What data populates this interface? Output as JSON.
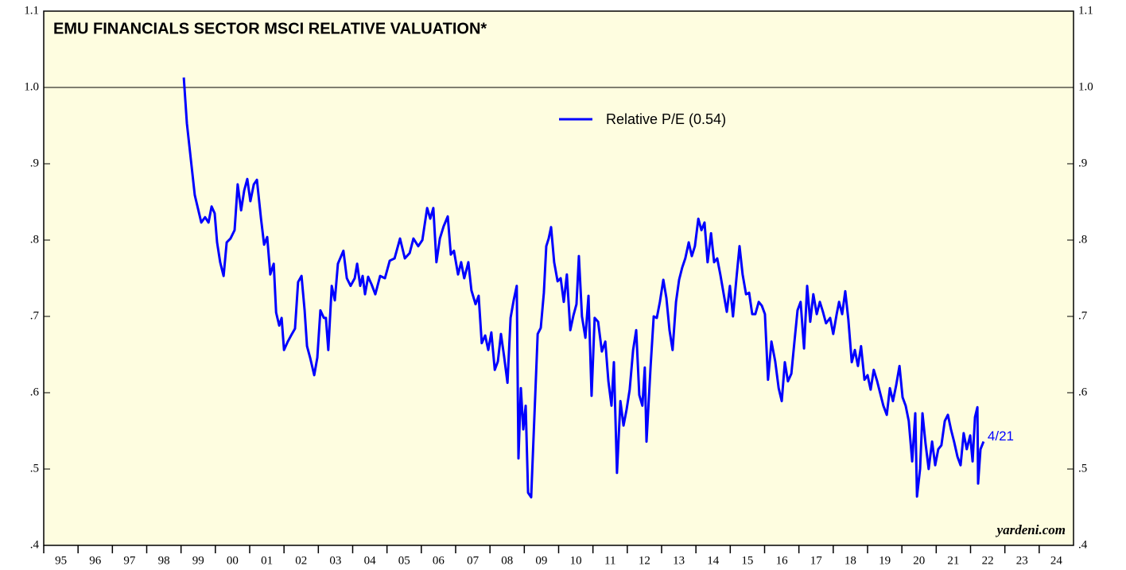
{
  "chart_data": {
    "type": "line",
    "title": "EMU FINANCIALS SECTOR MSCI RELATIVE VALUATION*",
    "annotation": "4/21",
    "source": "yardeni.com",
    "reference_line": 1.0,
    "legend": "top-center",
    "xlim": [
      1995,
      2025
    ],
    "xticks": [
      {
        "value": 1995,
        "label": "95"
      },
      {
        "value": 1996,
        "label": "96"
      },
      {
        "value": 1997,
        "label": "97"
      },
      {
        "value": 1998,
        "label": "98"
      },
      {
        "value": 1999,
        "label": "99"
      },
      {
        "value": 2000,
        "label": "00"
      },
      {
        "value": 2001,
        "label": "01"
      },
      {
        "value": 2002,
        "label": "02"
      },
      {
        "value": 2003,
        "label": "03"
      },
      {
        "value": 2004,
        "label": "04"
      },
      {
        "value": 2005,
        "label": "05"
      },
      {
        "value": 2006,
        "label": "06"
      },
      {
        "value": 2007,
        "label": "07"
      },
      {
        "value": 2008,
        "label": "08"
      },
      {
        "value": 2009,
        "label": "09"
      },
      {
        "value": 2010,
        "label": "10"
      },
      {
        "value": 2011,
        "label": "11"
      },
      {
        "value": 2012,
        "label": "12"
      },
      {
        "value": 2013,
        "label": "13"
      },
      {
        "value": 2014,
        "label": "14"
      },
      {
        "value": 2015,
        "label": "15"
      },
      {
        "value": 2016,
        "label": "16"
      },
      {
        "value": 2017,
        "label": "17"
      },
      {
        "value": 2018,
        "label": "18"
      },
      {
        "value": 2019,
        "label": "19"
      },
      {
        "value": 2020,
        "label": "20"
      },
      {
        "value": 2021,
        "label": "21"
      },
      {
        "value": 2022,
        "label": "22"
      },
      {
        "value": 2023,
        "label": "23"
      },
      {
        "value": 2024,
        "label": "24"
      }
    ],
    "ylim": [
      0.4,
      1.1
    ],
    "yticks": [
      {
        "value": 0.4,
        "label": ".4"
      },
      {
        "value": 0.5,
        "label": ".5"
      },
      {
        "value": 0.6,
        "label": ".6"
      },
      {
        "value": 0.7,
        "label": ".7"
      },
      {
        "value": 0.8,
        "label": ".8"
      },
      {
        "value": 0.9,
        "label": ".9"
      },
      {
        "value": 1.0,
        "label": "1.0"
      },
      {
        "value": 1.1,
        "label": "1.1"
      }
    ],
    "x": [
      1999.08,
      1999.17,
      1999.4,
      1999.59,
      1999.7,
      1999.8,
      1999.89,
      1999.98,
      2000.05,
      2000.14,
      2000.24,
      2000.33,
      2000.44,
      2000.56,
      2000.65,
      2000.75,
      2000.84,
      2000.93,
      2001.02,
      2001.12,
      2001.21,
      2001.33,
      2001.42,
      2001.51,
      2001.6,
      2001.7,
      2001.77,
      2001.86,
      2001.93,
      2002.0,
      2002.11,
      2002.23,
      2002.32,
      2002.41,
      2002.51,
      2002.6,
      2002.67,
      2002.76,
      2002.88,
      2002.97,
      2003.06,
      2003.16,
      2003.22,
      2003.29,
      2003.39,
      2003.48,
      2003.57,
      2003.73,
      2003.83,
      2003.94,
      2004.06,
      2004.13,
      2004.22,
      2004.29,
      2004.36,
      2004.45,
      2004.55,
      2004.66,
      2004.8,
      2004.94,
      2005.08,
      2005.22,
      2005.38,
      2005.52,
      2005.66,
      2005.77,
      2005.91,
      2006.03,
      2006.17,
      2006.26,
      2006.35,
      2006.44,
      2006.54,
      2006.65,
      2006.77,
      2006.86,
      2006.95,
      2007.07,
      2007.16,
      2007.25,
      2007.37,
      2007.46,
      2007.58,
      2007.67,
      2007.76,
      2007.86,
      2007.95,
      2008.04,
      2008.14,
      2008.23,
      2008.32,
      2008.41,
      2008.51,
      2008.6,
      2008.69,
      2008.78,
      2008.83,
      2008.9,
      2008.97,
      2009.04,
      2009.11,
      2009.2,
      2009.27,
      2009.39,
      2009.48,
      2009.57,
      2009.64,
      2009.71,
      2009.78,
      2009.87,
      2009.97,
      2010.06,
      2010.15,
      2010.24,
      2010.34,
      2010.43,
      2010.52,
      2010.59,
      2010.68,
      2010.78,
      2010.87,
      2010.96,
      2011.05,
      2011.15,
      2011.26,
      2011.36,
      2011.45,
      2011.54,
      2011.61,
      2011.7,
      2011.8,
      2011.89,
      2011.98,
      2012.07,
      2012.17,
      2012.26,
      2012.35,
      2012.44,
      2012.51,
      2012.56,
      2012.68,
      2012.77,
      2012.86,
      2012.95,
      2013.05,
      2013.14,
      2013.23,
      2013.32,
      2013.42,
      2013.51,
      2013.6,
      2013.69,
      2013.79,
      2013.88,
      2013.97,
      2014.07,
      2014.16,
      2014.25,
      2014.34,
      2014.44,
      2014.53,
      2014.62,
      2014.71,
      2014.81,
      2014.9,
      2014.99,
      2015.08,
      2015.18,
      2015.27,
      2015.36,
      2015.46,
      2015.55,
      2015.64,
      2015.73,
      2015.83,
      2015.92,
      2016.01,
      2016.1,
      2016.2,
      2016.31,
      2016.41,
      2016.5,
      2016.59,
      2016.68,
      2016.78,
      2016.87,
      2016.96,
      2017.05,
      2017.15,
      2017.24,
      2017.33,
      2017.42,
      2017.52,
      2017.61,
      2017.7,
      2017.79,
      2017.91,
      2018.0,
      2018.1,
      2018.17,
      2018.26,
      2018.35,
      2018.44,
      2018.54,
      2018.63,
      2018.72,
      2018.81,
      2018.91,
      2019.0,
      2019.09,
      2019.18,
      2019.28,
      2019.37,
      2019.46,
      2019.56,
      2019.65,
      2019.74,
      2019.83,
      2019.93,
      2020.02,
      2020.11,
      2020.2,
      2020.3,
      2020.39,
      2020.44,
      2020.53,
      2020.6,
      2020.69,
      2020.78,
      2020.88,
      2020.97,
      2021.06,
      2021.15,
      2021.25,
      2021.34,
      2021.43,
      2021.52,
      2021.62,
      2021.71,
      2021.8,
      2021.89,
      2021.99,
      2022.06,
      2022.13,
      2022.2,
      2022.22,
      2022.29,
      2022.38
    ],
    "series": [
      {
        "name": "Relative P/E (0.54)",
        "color": "#0000ff",
        "values": [
          1.013,
          0.953,
          0.859,
          0.823,
          0.83,
          0.823,
          0.844,
          0.835,
          0.797,
          0.771,
          0.753,
          0.797,
          0.802,
          0.813,
          0.873,
          0.839,
          0.865,
          0.88,
          0.851,
          0.873,
          0.879,
          0.828,
          0.794,
          0.804,
          0.755,
          0.769,
          0.705,
          0.688,
          0.698,
          0.656,
          0.667,
          0.677,
          0.684,
          0.745,
          0.753,
          0.708,
          0.661,
          0.646,
          0.623,
          0.646,
          0.708,
          0.698,
          0.698,
          0.656,
          0.74,
          0.721,
          0.769,
          0.786,
          0.75,
          0.74,
          0.75,
          0.769,
          0.74,
          0.753,
          0.729,
          0.752,
          0.742,
          0.729,
          0.753,
          0.75,
          0.773,
          0.776,
          0.802,
          0.776,
          0.783,
          0.802,
          0.792,
          0.8,
          0.842,
          0.828,
          0.842,
          0.771,
          0.802,
          0.818,
          0.831,
          0.781,
          0.786,
          0.755,
          0.771,
          0.75,
          0.771,
          0.734,
          0.716,
          0.727,
          0.665,
          0.675,
          0.656,
          0.679,
          0.63,
          0.641,
          0.677,
          0.648,
          0.613,
          0.698,
          0.721,
          0.74,
          0.514,
          0.606,
          0.552,
          0.583,
          0.469,
          0.463,
          0.542,
          0.677,
          0.685,
          0.731,
          0.792,
          0.802,
          0.817,
          0.771,
          0.746,
          0.75,
          0.719,
          0.755,
          0.682,
          0.701,
          0.716,
          0.779,
          0.7,
          0.672,
          0.727,
          0.596,
          0.698,
          0.693,
          0.654,
          0.667,
          0.615,
          0.583,
          0.64,
          0.495,
          0.589,
          0.557,
          0.578,
          0.604,
          0.656,
          0.682,
          0.597,
          0.583,
          0.633,
          0.536,
          0.635,
          0.7,
          0.698,
          0.719,
          0.748,
          0.724,
          0.682,
          0.656,
          0.719,
          0.748,
          0.764,
          0.776,
          0.797,
          0.779,
          0.792,
          0.828,
          0.813,
          0.823,
          0.771,
          0.809,
          0.771,
          0.776,
          0.755,
          0.729,
          0.706,
          0.74,
          0.7,
          0.75,
          0.792,
          0.755,
          0.729,
          0.731,
          0.703,
          0.703,
          0.719,
          0.714,
          0.703,
          0.617,
          0.667,
          0.641,
          0.606,
          0.589,
          0.64,
          0.615,
          0.625,
          0.667,
          0.708,
          0.719,
          0.658,
          0.74,
          0.693,
          0.729,
          0.703,
          0.719,
          0.706,
          0.691,
          0.698,
          0.677,
          0.703,
          0.719,
          0.703,
          0.733,
          0.696,
          0.64,
          0.656,
          0.635,
          0.661,
          0.617,
          0.623,
          0.604,
          0.63,
          0.615,
          0.599,
          0.583,
          0.571,
          0.606,
          0.589,
          0.609,
          0.635,
          0.594,
          0.583,
          0.563,
          0.51,
          0.573,
          0.464,
          0.5,
          0.573,
          0.533,
          0.5,
          0.536,
          0.505,
          0.526,
          0.531,
          0.563,
          0.571,
          0.552,
          0.536,
          0.516,
          0.505,
          0.547,
          0.526,
          0.544,
          0.51,
          0.568,
          0.581,
          0.481,
          0.526,
          0.536
        ]
      }
    ]
  }
}
